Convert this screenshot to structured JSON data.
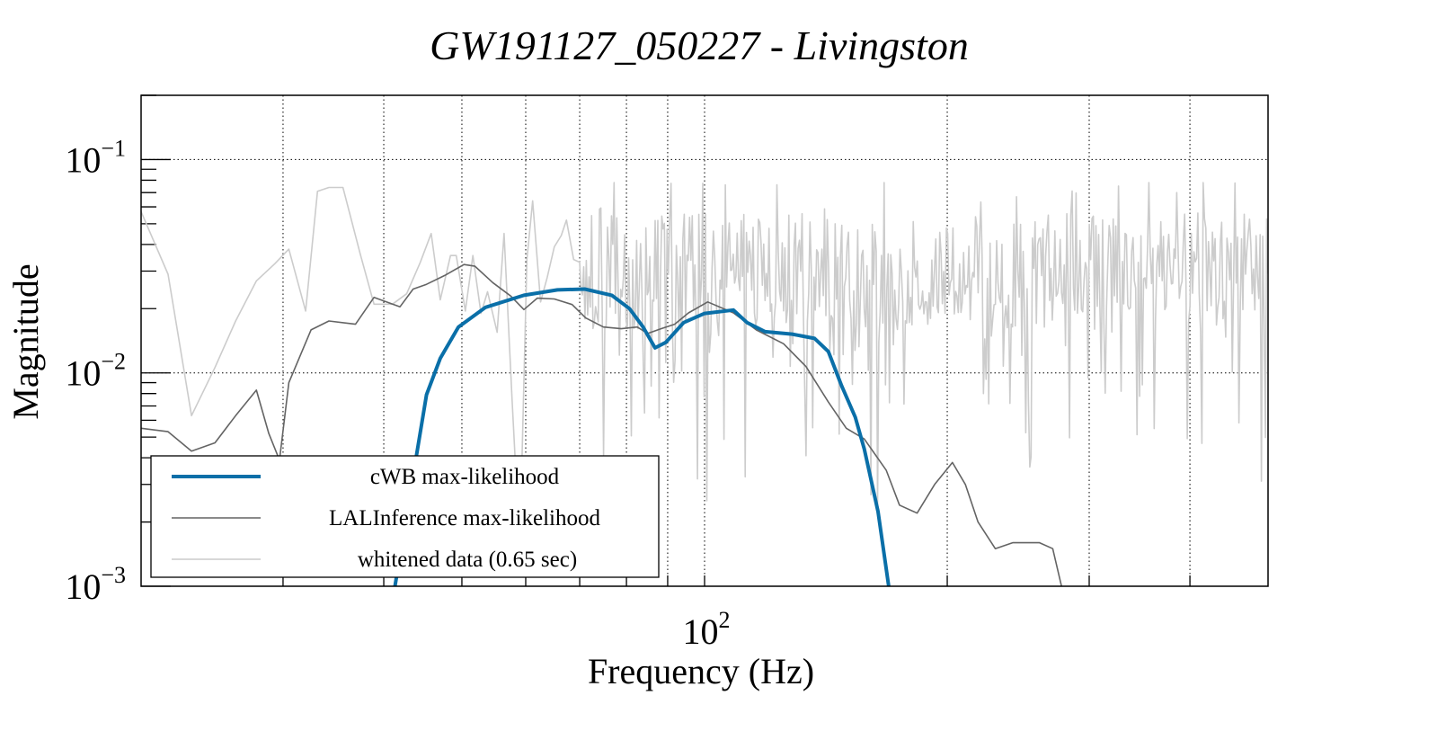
{
  "chart_data": {
    "type": "line",
    "title": "GW191127_050227 - Livingston",
    "xlabel": "Frequency (Hz)",
    "ylabel": "Magnitude",
    "xscale": "log",
    "yscale": "log",
    "xlim": [
      20,
      500
    ],
    "ylim": [
      0.001,
      0.2
    ],
    "grid": true,
    "x_gridlines": [
      30,
      40,
      50,
      60,
      70,
      80,
      90,
      100,
      200,
      300,
      400
    ],
    "y_gridlines": [
      0.001,
      0.01,
      0.1
    ],
    "x_tick_labels": [
      {
        "value": 100,
        "base": "10",
        "exp": "2"
      }
    ],
    "y_tick_labels": [
      {
        "value": 0.1,
        "base": "10",
        "exp": "−1"
      },
      {
        "value": 0.01,
        "base": "10",
        "exp": "−2"
      },
      {
        "value": 0.001,
        "base": "10",
        "exp": "−3"
      }
    ],
    "legend_position": "bottom-left",
    "series": [
      {
        "name": "cWB max-likelihood",
        "color": "#0a6fa8",
        "x": [
          41.3,
          43.5,
          45.2,
          47.0,
          49.5,
          53.5,
          59.7,
          65.7,
          71.0,
          76.7,
          80.7,
          83.9,
          86.8,
          89.5,
          94.2,
          100,
          108.6,
          112.9,
          118.9,
          128.4,
          136.9,
          142.4,
          147.9,
          153.8,
          157.8,
          164.1,
          169.2
        ],
        "y": [
          0.001,
          0.0033,
          0.0079,
          0.0117,
          0.0164,
          0.0203,
          0.0231,
          0.0245,
          0.0247,
          0.0231,
          0.02,
          0.0164,
          0.0131,
          0.0139,
          0.0172,
          0.019,
          0.0197,
          0.0172,
          0.0156,
          0.0152,
          0.0145,
          0.0126,
          0.0087,
          0.0062,
          0.0044,
          0.00224,
          0.001
        ]
      },
      {
        "name": "LALInference max-likelihood",
        "color": "#646464",
        "x": [
          20.0,
          21.6,
          23.1,
          24.7,
          26.2,
          27.8,
          28.8,
          29.7,
          30.5,
          32.5,
          34.2,
          36.9,
          38.9,
          41.9,
          43.5,
          45.2,
          47.6,
          50.3,
          51.9,
          54.6,
          57.5,
          59.7,
          62.0,
          65.1,
          68.5,
          71.2,
          74.9,
          78.8,
          82.5,
          85.0,
          88.3,
          91.8,
          95.5,
          100.9,
          108.6,
          115.9,
          125.3,
          133.6,
          142.4,
          149.9,
          157.8,
          168.0,
          174.5,
          183.5,
          192.9,
          203.0,
          210.6,
          218.4,
          229.4,
          241.1,
          260.3,
          270.3,
          277.2
        ],
        "y": [
          0.0055,
          0.0053,
          0.0043,
          0.0047,
          0.0063,
          0.0083,
          0.0052,
          0.0039,
          0.009,
          0.0159,
          0.0175,
          0.0169,
          0.0226,
          0.0204,
          0.0247,
          0.026,
          0.0286,
          0.0322,
          0.0316,
          0.0265,
          0.0229,
          0.0198,
          0.0224,
          0.0222,
          0.0209,
          0.0181,
          0.0164,
          0.0161,
          0.0164,
          0.0153,
          0.0161,
          0.0169,
          0.0191,
          0.0215,
          0.0191,
          0.0159,
          0.0137,
          0.0107,
          0.0073,
          0.0055,
          0.0049,
          0.0035,
          0.0024,
          0.0022,
          0.003,
          0.0038,
          0.003,
          0.002,
          0.0015,
          0.0016,
          0.0016,
          0.0015,
          0.001
        ]
      },
      {
        "name": "whitened data (0.65 sec)",
        "color": "#cccccc",
        "x": [
          20.0,
          21.6,
          23.1,
          24.7,
          26.2,
          27.8,
          29.3,
          30.5,
          32.0,
          33.1,
          34.2,
          35.6,
          37.4,
          38.9,
          41.0,
          42.7,
          44.4,
          45.8,
          47.0,
          48.4,
          49.2,
          50.5,
          51.6,
          52.8,
          53.8,
          55.3,
          56.4,
          57.7,
          59.0,
          60.2,
          61.2,
          62.6,
          63.8,
          65.1,
          66.4,
          67.4,
          68.8,
          70.0
        ],
        "y": [
          0.057,
          0.029,
          0.0063,
          0.0106,
          0.0175,
          0.027,
          0.0325,
          0.038,
          0.0195,
          0.071,
          0.074,
          0.074,
          0.036,
          0.021,
          0.021,
          0.0235,
          0.033,
          0.045,
          0.022,
          0.0355,
          0.0355,
          0.0195,
          0.0355,
          0.019,
          0.024,
          0.0155,
          0.045,
          0.0075,
          0.0015,
          0.034,
          0.064,
          0.0215,
          0.028,
          0.039,
          0.044,
          0.052,
          0.034,
          0.033
        ],
        "noise_continuation": {
          "x_range": [
            70,
            500
          ],
          "y_range": [
            0.0015,
            0.078
          ],
          "typical": 0.03
        }
      }
    ]
  }
}
